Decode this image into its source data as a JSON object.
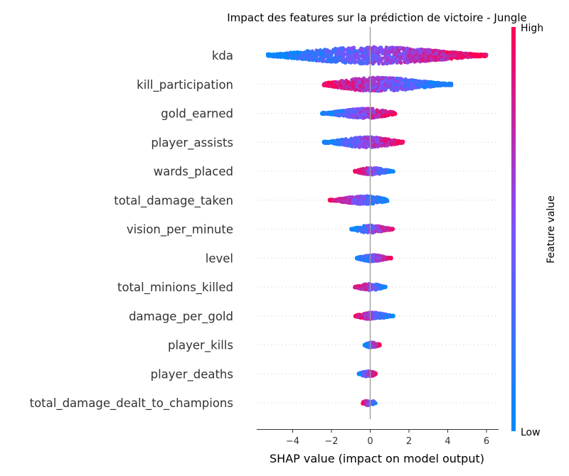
{
  "chart_data": {
    "type": "scatter",
    "subtype": "shap-beeswarm",
    "title": "Impact des features sur la prédiction de victoire - Jungle",
    "xlabel": "SHAP value (impact on model output)",
    "ylabel": "",
    "xlim": [
      -5.9,
      6.3
    ],
    "xticks": [
      -4,
      -2,
      0,
      2,
      4,
      6
    ],
    "xtick_labels": [
      "−4",
      "−2",
      "0",
      "2",
      "4",
      "6"
    ],
    "colorbar": {
      "label": "Feature value",
      "high_label": "High",
      "low_label": "Low",
      "low_color": "#008bfb",
      "high_color": "#ff0052"
    },
    "features": [
      {
        "name": "kda",
        "min": -5.3,
        "max": 6.0,
        "low_side": "left"
      },
      {
        "name": "kill_participation",
        "min": -2.4,
        "max": 4.2,
        "low_side": "right"
      },
      {
        "name": "gold_earned",
        "min": -2.5,
        "max": 1.3,
        "low_side": "left"
      },
      {
        "name": "player_assists",
        "min": -2.4,
        "max": 1.7,
        "low_side": "left"
      },
      {
        "name": "wards_placed",
        "min": -0.8,
        "max": 1.2,
        "low_side": "right"
      },
      {
        "name": "total_damage_taken",
        "min": -2.1,
        "max": 0.9,
        "low_side": "right"
      },
      {
        "name": "vision_per_minute",
        "min": -1.0,
        "max": 1.2,
        "low_side": "left"
      },
      {
        "name": "level",
        "min": -0.7,
        "max": 1.1,
        "low_side": "left"
      },
      {
        "name": "total_minions_killed",
        "min": -0.8,
        "max": 0.8,
        "low_side": "right"
      },
      {
        "name": "damage_per_gold",
        "min": -0.8,
        "max": 1.2,
        "low_side": "right"
      },
      {
        "name": "player_kills",
        "min": -0.3,
        "max": 0.5,
        "low_side": "left"
      },
      {
        "name": "player_deaths",
        "min": -0.6,
        "max": 0.3,
        "low_side": "left"
      },
      {
        "name": "total_damage_dealt_to_champions",
        "min": -0.4,
        "max": 0.3,
        "low_side": "right"
      }
    ],
    "grid": false,
    "colorbar_position": "right"
  }
}
